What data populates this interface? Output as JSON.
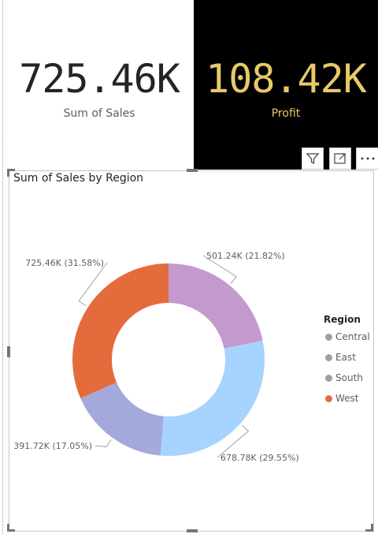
{
  "cards": {
    "sales": {
      "value": "725.46K",
      "label": "Sum of Sales"
    },
    "profit": {
      "value": "108.42K",
      "label": "Profit"
    }
  },
  "visual_header": {
    "filter_icon": "filter-icon",
    "focus_icon": "focus-mode-icon",
    "more_icon": "more-options-icon"
  },
  "chart": {
    "title": "Sum of Sales by Region",
    "legend_title": "Region"
  },
  "chart_data": {
    "type": "pie",
    "variant": "donut",
    "title": "Sum of Sales by Region",
    "legend_title": "Region",
    "legend_placement": "right",
    "categories": [
      "Central",
      "East",
      "South",
      "West"
    ],
    "slices": [
      {
        "category": "Central",
        "value": 501.24,
        "label": "501.24K (21.82%)",
        "color": "#c399ce",
        "legend_color": "#a0a0a0"
      },
      {
        "category": "East",
        "value": 678.78,
        "label": "678.78K (29.55%)",
        "color": "#a7d3ff",
        "legend_color": "#a0a0a0"
      },
      {
        "category": "South",
        "value": 391.72,
        "label": "391.72K (17.05%)",
        "color": "#a4a9dc",
        "legend_color": "#a0a0a0"
      },
      {
        "category": "West",
        "value": 725.46,
        "label": "725.46K (31.58%)",
        "color": "#e46c3c",
        "legend_color": "#e46c3c"
      }
    ]
  }
}
